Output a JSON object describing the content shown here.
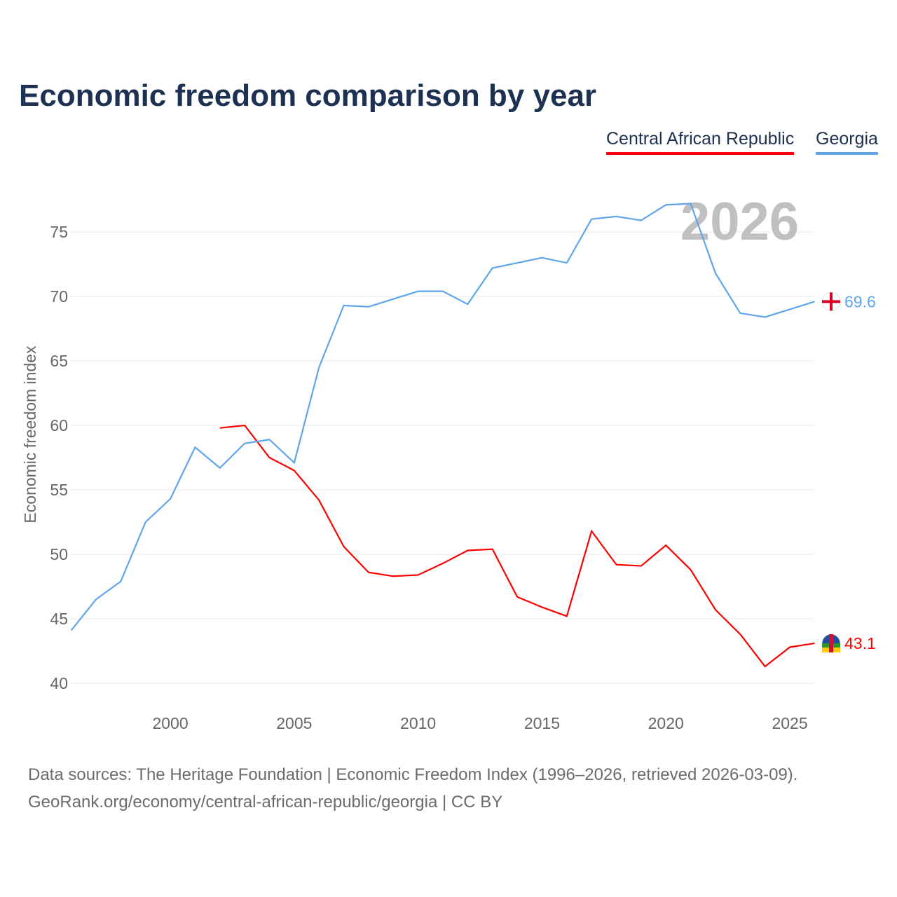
{
  "chart_data": {
    "type": "line",
    "title": "Economic freedom comparison by year",
    "xlabel": "",
    "ylabel": "Economic freedom index",
    "xlim": [
      1996,
      2026
    ],
    "ylim": [
      40,
      77.5
    ],
    "x_ticks": [
      2000,
      2005,
      2010,
      2015,
      2020,
      2025
    ],
    "y_ticks": [
      40,
      45,
      50,
      55,
      60,
      65,
      70,
      75
    ],
    "grid": true,
    "legend_placement": "top-right",
    "year_watermark": "2026",
    "series": [
      {
        "name": "Central African Republic",
        "color": "#ff0000",
        "end_label": "43.1",
        "x": [
          2002,
          2003,
          2004,
          2005,
          2006,
          2007,
          2008,
          2009,
          2010,
          2011,
          2012,
          2013,
          2014,
          2015,
          2016,
          2017,
          2018,
          2019,
          2020,
          2021,
          2022,
          2023,
          2024,
          2025,
          2026
        ],
        "values": [
          59.8,
          60.0,
          57.5,
          56.5,
          54.2,
          50.6,
          48.6,
          48.3,
          48.4,
          49.3,
          50.3,
          50.4,
          46.7,
          45.9,
          45.2,
          51.8,
          49.2,
          49.1,
          50.7,
          48.8,
          45.7,
          43.8,
          41.3,
          42.8,
          43.1
        ]
      },
      {
        "name": "Georgia",
        "color": "#5ea5ec",
        "end_label": "69.6",
        "x": [
          1996,
          1997,
          1998,
          1999,
          2000,
          2001,
          2002,
          2003,
          2004,
          2005,
          2006,
          2007,
          2008,
          2009,
          2010,
          2011,
          2012,
          2013,
          2014,
          2015,
          2016,
          2017,
          2018,
          2019,
          2020,
          2021,
          2022,
          2023,
          2024,
          2025,
          2026
        ],
        "values": [
          44.1,
          46.5,
          47.9,
          52.5,
          54.3,
          58.3,
          56.7,
          58.6,
          58.9,
          57.1,
          64.5,
          69.3,
          69.2,
          69.8,
          70.4,
          70.4,
          69.4,
          72.2,
          72.6,
          73.0,
          72.6,
          76.0,
          76.2,
          75.9,
          77.1,
          77.2,
          71.8,
          68.7,
          68.4,
          69.0,
          69.6
        ]
      }
    ]
  },
  "footer": {
    "line1": "Data sources: The Heritage Foundation | Economic Freedom Index (1996–2026, retrieved 2026-03-09).",
    "line2": "GeoRank.org/economy/central-african-republic/georgia | CC BY"
  }
}
